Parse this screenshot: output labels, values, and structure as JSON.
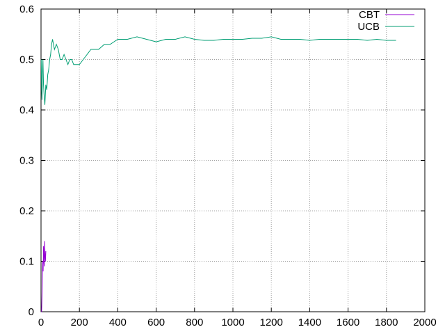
{
  "chart_data": {
    "type": "line",
    "title": "",
    "xlabel": "",
    "ylabel": "",
    "xlim": [
      0,
      2000
    ],
    "ylim": [
      0,
      0.6
    ],
    "xticks": [
      "0",
      "200",
      "400",
      "600",
      "800",
      "1000",
      "1200",
      "1400",
      "1600",
      "1800",
      "2000"
    ],
    "yticks": [
      "0",
      "0.1",
      "0.2",
      "0.3",
      "0.4",
      "0.5",
      "0.6"
    ],
    "grid": true,
    "legend_position": "top-right",
    "series": [
      {
        "name": "CBT",
        "color": "#9400d3",
        "x": [
          1,
          3,
          5,
          7,
          9,
          11,
          13,
          15,
          17,
          19,
          21,
          23,
          25
        ],
        "y": [
          0,
          0,
          0.03,
          0.07,
          0.1,
          0.08,
          0.13,
          0.1,
          0.09,
          0.14,
          0.11,
          0.1,
          0.12
        ]
      },
      {
        "name": "UCB",
        "color": "#009e73",
        "x": [
          1,
          3,
          5,
          8,
          10,
          13,
          16,
          20,
          25,
          30,
          35,
          40,
          45,
          50,
          55,
          60,
          65,
          70,
          80,
          90,
          100,
          110,
          120,
          130,
          140,
          150,
          160,
          170,
          180,
          190,
          200,
          220,
          240,
          260,
          280,
          300,
          330,
          360,
          400,
          450,
          500,
          550,
          600,
          650,
          700,
          750,
          800,
          850,
          900,
          950,
          1000,
          1050,
          1100,
          1150,
          1200,
          1250,
          1300,
          1350,
          1400,
          1450,
          1500,
          1550,
          1600,
          1650,
          1700,
          1750,
          1800,
          1850
        ],
        "y": [
          0.5,
          0.44,
          0.42,
          0.48,
          0.5,
          0.45,
          0.43,
          0.41,
          0.45,
          0.44,
          0.47,
          0.48,
          0.5,
          0.51,
          0.53,
          0.54,
          0.53,
          0.52,
          0.53,
          0.52,
          0.5,
          0.5,
          0.51,
          0.5,
          0.49,
          0.5,
          0.5,
          0.49,
          0.49,
          0.49,
          0.49,
          0.5,
          0.51,
          0.52,
          0.52,
          0.52,
          0.53,
          0.53,
          0.54,
          0.54,
          0.545,
          0.54,
          0.535,
          0.54,
          0.54,
          0.545,
          0.54,
          0.538,
          0.538,
          0.54,
          0.54,
          0.54,
          0.542,
          0.542,
          0.545,
          0.54,
          0.54,
          0.54,
          0.538,
          0.54,
          0.54,
          0.54,
          0.54,
          0.54,
          0.538,
          0.54,
          0.538,
          0.538
        ]
      }
    ]
  }
}
